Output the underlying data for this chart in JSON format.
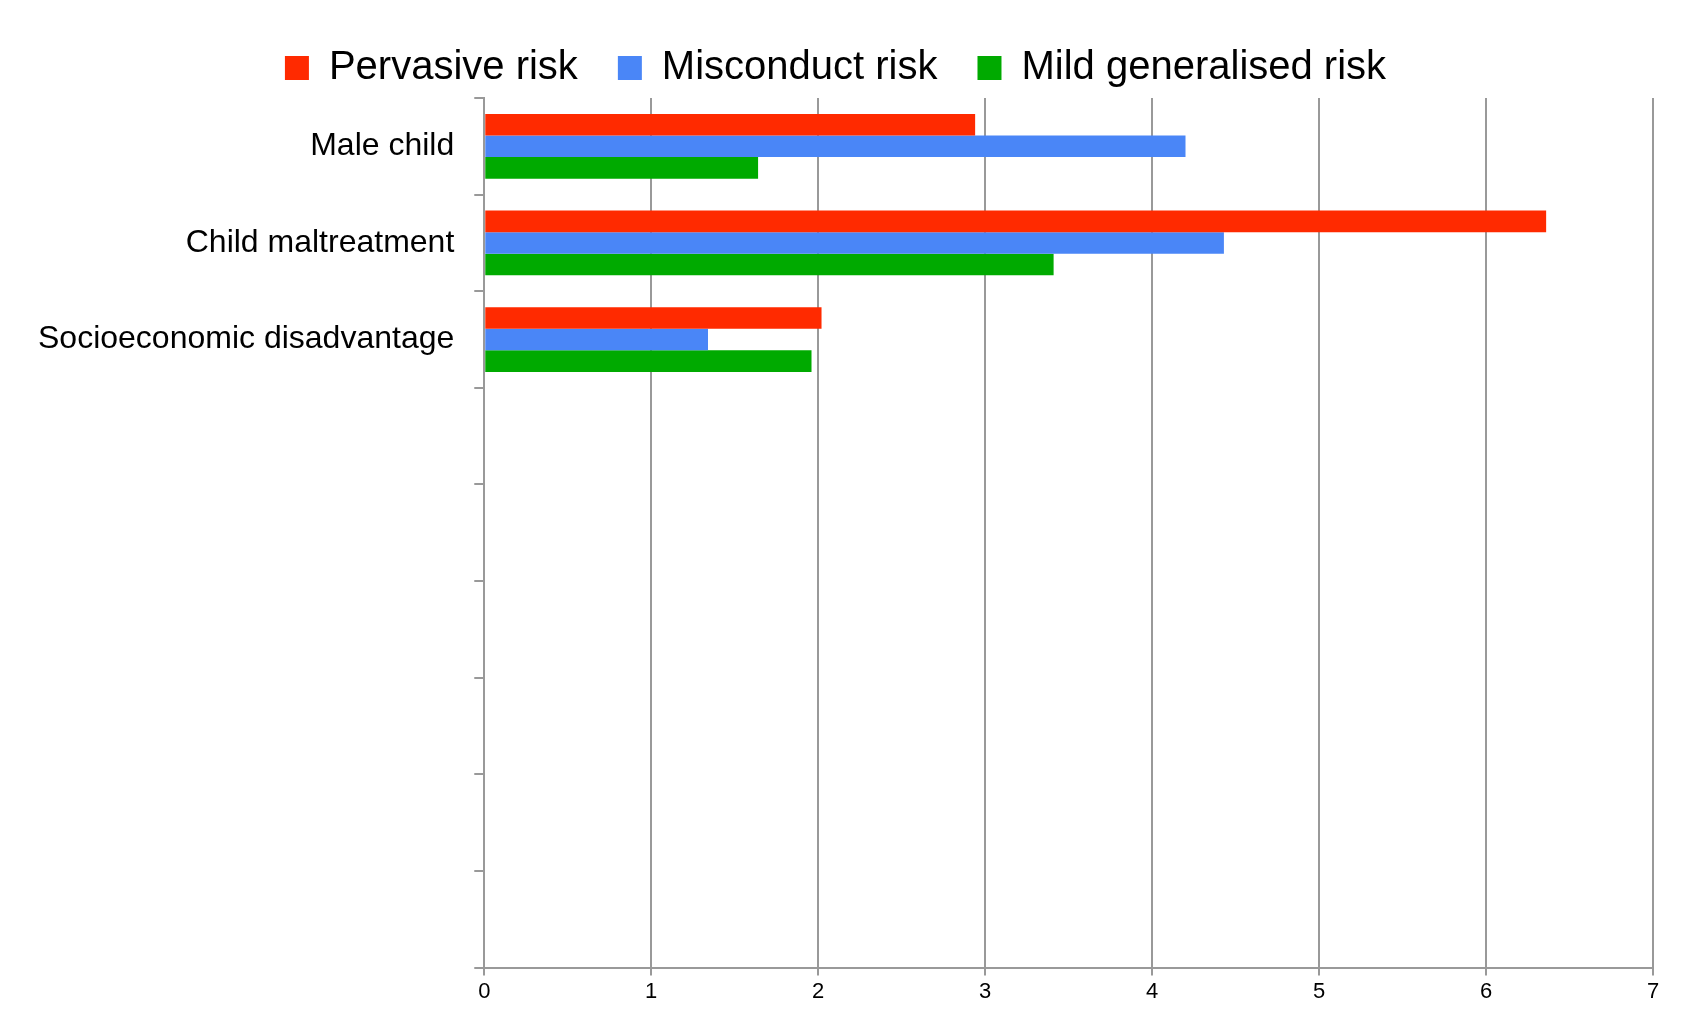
{
  "chart_data": {
    "type": "bar",
    "orientation": "horizontal",
    "categories": [
      "Male child",
      "Child maltreatment",
      "Socioeconomic disadvantage",
      null,
      null,
      null,
      null,
      null,
      null
    ],
    "series": [
      {
        "name": "Pervasive risk",
        "color": "#ff2a00",
        "values": [
          2.94,
          6.36,
          2.02,
          null,
          null,
          null,
          null,
          null,
          null
        ]
      },
      {
        "name": "Misconduct risk",
        "color": "#4a86f7",
        "values": [
          4.2,
          4.43,
          1.34,
          null,
          null,
          null,
          null,
          null,
          null
        ]
      },
      {
        "name": "Mild generalised risk",
        "color": "#00aa00",
        "values": [
          1.64,
          3.41,
          1.96,
          null,
          null,
          null,
          null,
          null,
          null
        ]
      }
    ],
    "xlim": [
      0,
      7
    ],
    "xticks": [
      0,
      1,
      2,
      3,
      4,
      5,
      6,
      7
    ],
    "grid": "x",
    "legend": "top"
  }
}
